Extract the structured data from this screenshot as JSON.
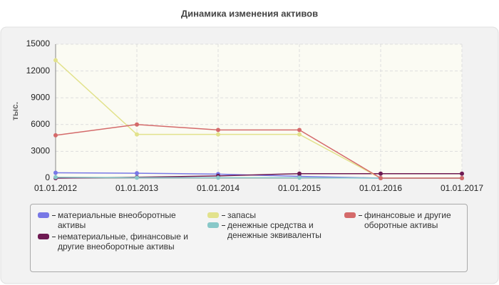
{
  "chart_data": {
    "type": "line",
    "title": "Динамика изменения активов",
    "y_label": "тыс.",
    "categories": [
      "01.01.2012",
      "01.01.2013",
      "01.01.2014",
      "01.01.2015",
      "01.01.2016",
      "01.01.2017"
    ],
    "series": [
      {
        "name": "материальные внеоборотные активы",
        "color": "#7878e6",
        "values": [
          600,
          550,
          450,
          200,
          0,
          0
        ]
      },
      {
        "name": "нематериальные, финансовые и другие внеоборотные активы",
        "color": "#6e1a52",
        "values": [
          0,
          100,
          250,
          500,
          500,
          500
        ]
      },
      {
        "name": "запасы",
        "color": "#e2e28c",
        "values": [
          13200,
          4900,
          4900,
          4900,
          0,
          0
        ]
      },
      {
        "name": "денежные средства и денежные эквиваленты",
        "color": "#88c8c8",
        "values": [
          100,
          50,
          50,
          50,
          0,
          0
        ]
      },
      {
        "name": "финансовые и другие оборотные активы",
        "color": "#d46a6a",
        "values": [
          4800,
          6000,
          5400,
          5400,
          0,
          0
        ]
      }
    ],
    "ylim": [
      0,
      15000
    ],
    "yticks": [
      0,
      3000,
      6000,
      9000,
      12000,
      15000
    ],
    "grid": true
  }
}
